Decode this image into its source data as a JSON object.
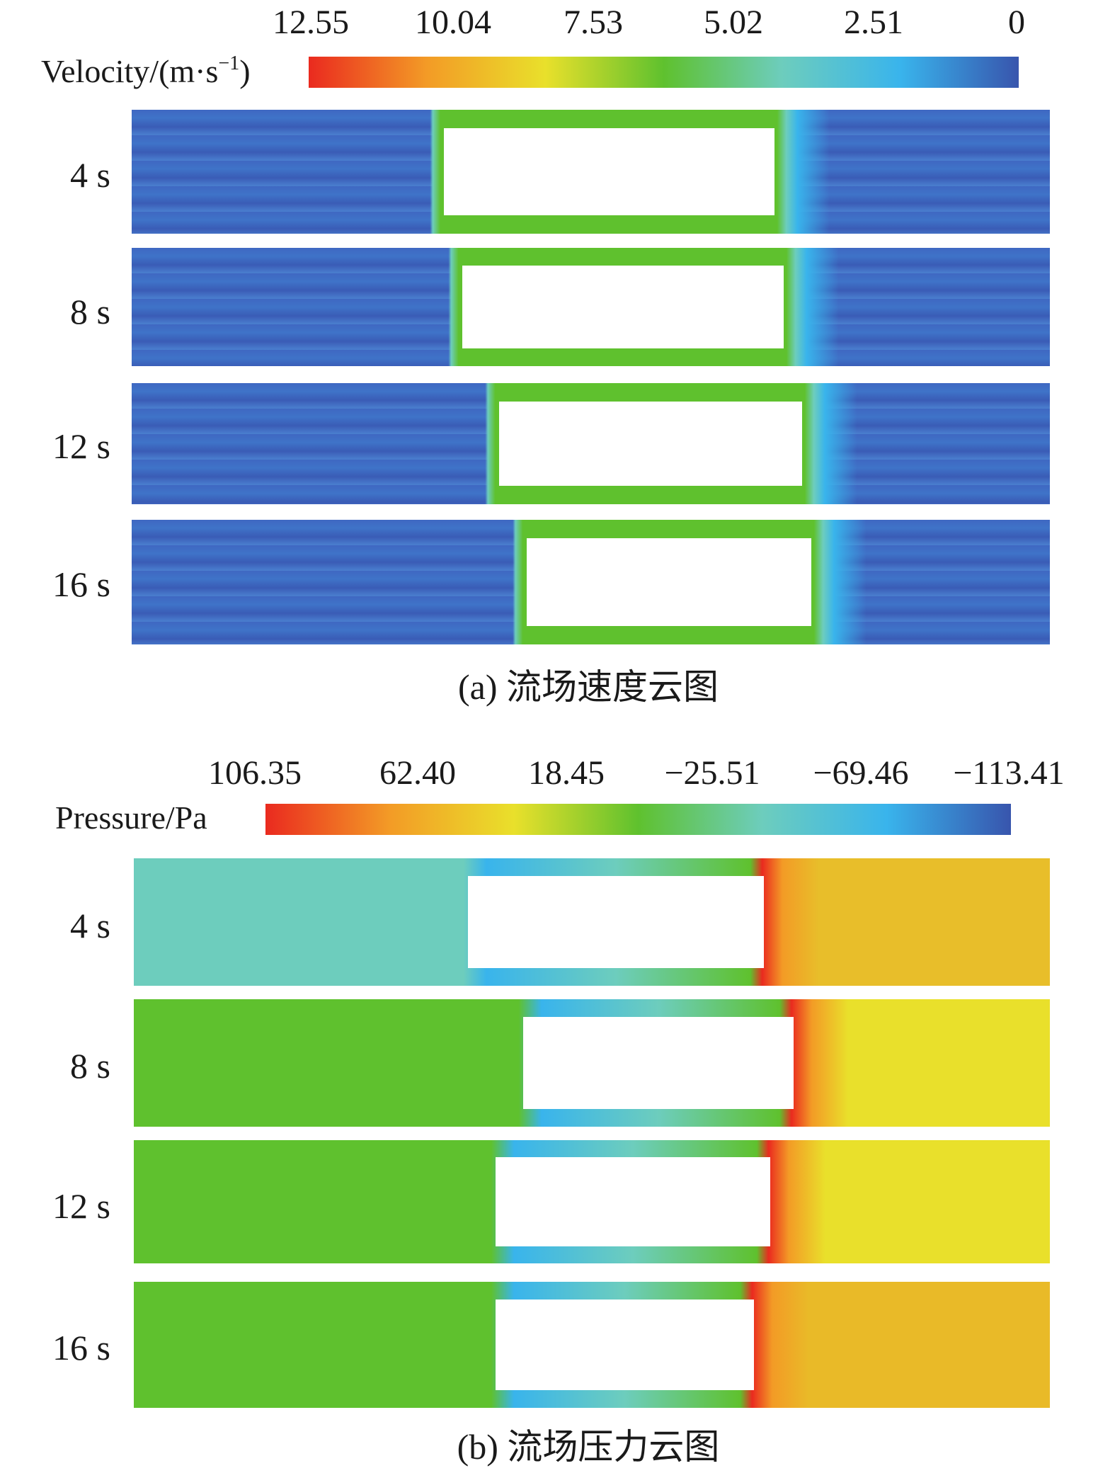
{
  "colors": {
    "red": "#ea2a1f",
    "orange": "#f39b26",
    "yellow": "#e9e02b",
    "green": "#5fc12e",
    "teal": "#6dcdbd",
    "cyan": "#39b4ec",
    "blue": "#3855ad"
  },
  "velocity": {
    "quantity_label": "Velocity/(m·s",
    "quantity_exponent": "−1",
    "quantity_close": ")",
    "ticks": [
      "12.55",
      "10.04",
      "7.53",
      "5.02",
      "2.51",
      "0"
    ],
    "rows": [
      {
        "label": "4 s",
        "block_start": 0.34,
        "block_end": 0.7
      },
      {
        "label": "8 s",
        "block_start": 0.36,
        "block_end": 0.71
      },
      {
        "label": "12 s",
        "block_start": 0.4,
        "block_end": 0.73
      },
      {
        "label": "16 s",
        "block_start": 0.43,
        "block_end": 0.74
      }
    ],
    "caption": "(a) 流场速度云图"
  },
  "pressure": {
    "quantity_label": "Pressure/Pa",
    "ticks": [
      "106.35",
      "62.40",
      "18.45",
      "−25.51",
      "−69.46",
      "−113.41"
    ],
    "rows": [
      {
        "label": "4 s",
        "block_start": 0.365,
        "block_end": 0.688
      },
      {
        "label": "8 s",
        "block_start": 0.425,
        "block_end": 0.72
      },
      {
        "label": "12 s",
        "block_start": 0.395,
        "block_end": 0.695
      },
      {
        "label": "16 s",
        "block_start": 0.395,
        "block_end": 0.677
      }
    ],
    "caption": "(b) 流场压力云图"
  }
}
